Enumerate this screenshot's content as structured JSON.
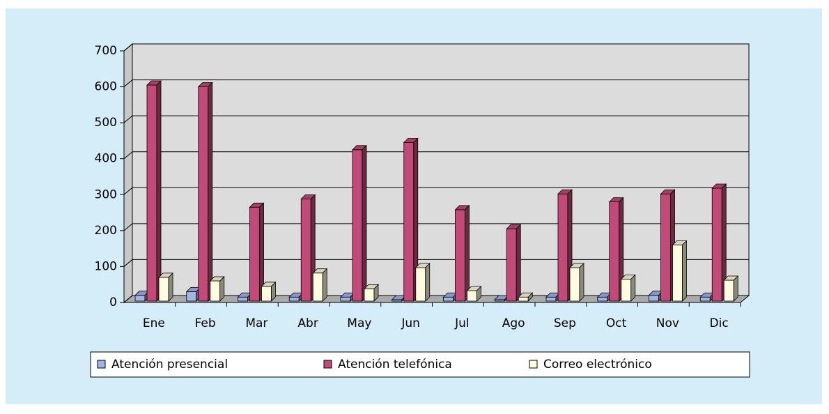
{
  "chart_data": {
    "type": "bar3d",
    "categories": [
      "Ene",
      "Feb",
      "Mar",
      "Abr",
      "May",
      "Jun",
      "Jul",
      "Ago",
      "Sep",
      "Oct",
      "Nov",
      "Dic"
    ],
    "series": [
      {
        "name": "Atención presencial",
        "color": "#a3b3e6",
        "values": [
          20,
          30,
          15,
          15,
          15,
          8,
          15,
          8,
          15,
          15,
          20,
          15
        ]
      },
      {
        "name": "Atención telefónica",
        "color": "#c24a78",
        "values": [
          605,
          600,
          265,
          288,
          425,
          445,
          258,
          205,
          302,
          280,
          302,
          318
        ]
      },
      {
        "name": "Correo electrónico",
        "color": "#fffbe0",
        "values": [
          70,
          60,
          45,
          82,
          38,
          97,
          33,
          15,
          97,
          65,
          160,
          62
        ]
      }
    ],
    "ylim": [
      0,
      700
    ],
    "yticks": [
      0,
      100,
      200,
      300,
      400,
      500,
      600,
      700
    ],
    "grid": true,
    "legend": "bottom"
  }
}
